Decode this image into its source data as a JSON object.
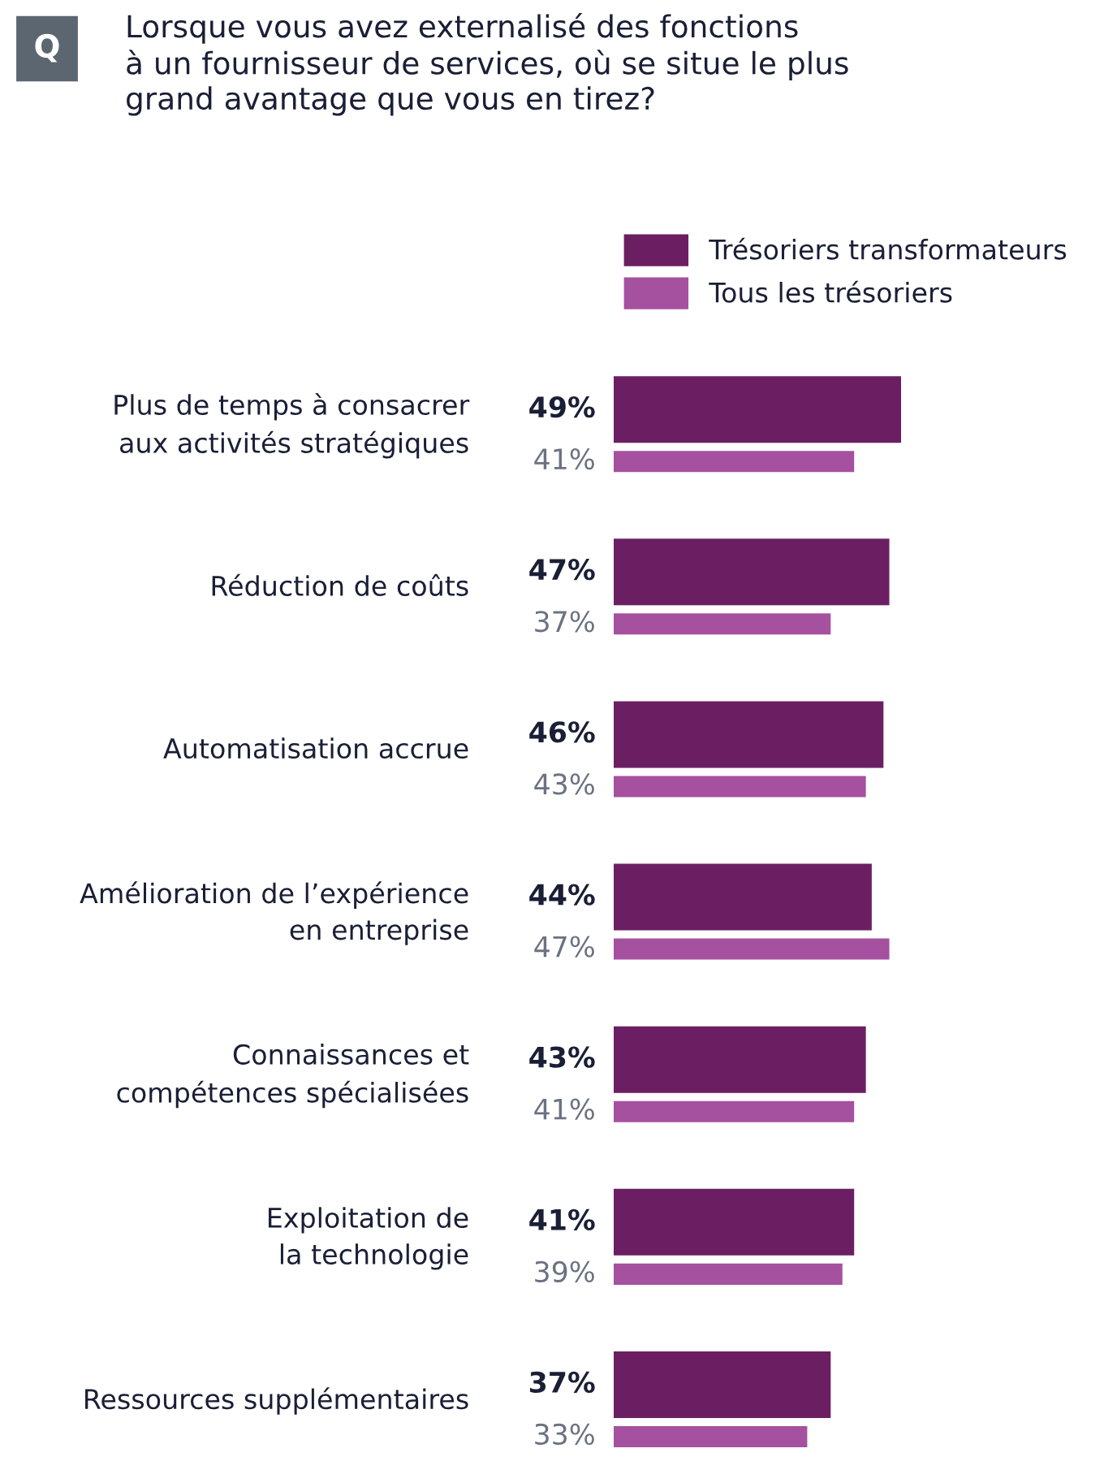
{
  "chart_data": {
    "type": "bar",
    "orientation": "horizontal",
    "title": "Lorsque vous avez externalisé des fonctions\nà un fournisseur de services, où se situe le plus\ngrand avantage que vous en tirez?",
    "annotations": [
      "Q"
    ],
    "legend": "top",
    "categories": [
      "Plus de temps à consacrer\naux activités stratégiques",
      "Réduction de coûts",
      "Automatisation accrue",
      "Amélioration de l’expérience\nen entreprise",
      "Connaissances et\ncompétences spécialisées",
      "Exploitation de\nla technologie",
      "Ressources supplémentaires"
    ],
    "series": [
      {
        "name": "Trésoriers transformateurs",
        "color": "#6b1f62",
        "values": [
          49,
          47,
          46,
          44,
          43,
          41,
          37
        ],
        "value_labels": [
          "49%",
          "47%",
          "46%",
          "44%",
          "43%",
          "41%",
          "37%"
        ]
      },
      {
        "name": "Tous les trésoriers",
        "color": "#a650a0",
        "values": [
          41,
          37,
          43,
          47,
          41,
          39,
          33
        ],
        "value_labels": [
          "41%",
          "37%",
          "43%",
          "47%",
          "41%",
          "39%",
          "33%"
        ]
      }
    ]
  }
}
